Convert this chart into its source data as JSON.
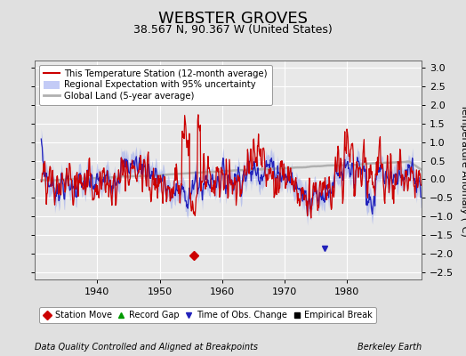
{
  "title": "WEBSTER GROVES",
  "subtitle": "38.567 N, 90.367 W (United States)",
  "ylabel": "Temperature Anomaly (°C)",
  "footer_left": "Data Quality Controlled and Aligned at Breakpoints",
  "footer_right": "Berkeley Earth",
  "xlim": [
    1930,
    1992
  ],
  "ylim": [
    -2.7,
    3.2
  ],
  "yticks": [
    -2.5,
    -2,
    -1.5,
    -1,
    -0.5,
    0,
    0.5,
    1,
    1.5,
    2,
    2.5,
    3
  ],
  "xticks": [
    1940,
    1950,
    1960,
    1970,
    1980
  ],
  "bg_color": "#e0e0e0",
  "plot_bg_color": "#e8e8e8",
  "legend_entries": [
    {
      "label": "This Temperature Station (12-month average)",
      "color": "#cc0000",
      "lw": 1.5
    },
    {
      "label": "Regional Expectation with 95% uncertainty",
      "color": "#2222bb",
      "lw": 1.5
    },
    {
      "label": "Global Land (5-year average)",
      "color": "#aaaaaa",
      "lw": 2.0
    }
  ],
  "marker_entries": [
    {
      "label": "Station Move",
      "color": "#cc0000",
      "marker": "D"
    },
    {
      "label": "Record Gap",
      "color": "#009900",
      "marker": "^"
    },
    {
      "label": "Time of Obs. Change",
      "color": "#2222bb",
      "marker": "v"
    },
    {
      "label": "Empirical Break",
      "color": "#000000",
      "marker": "s"
    }
  ],
  "station_move_x": 1955.5,
  "station_move_y": -2.05,
  "obs_change_x": 1976.5,
  "obs_change_y": -1.85,
  "title_fontsize": 13,
  "subtitle_fontsize": 9,
  "tick_fontsize": 8,
  "label_fontsize": 8
}
